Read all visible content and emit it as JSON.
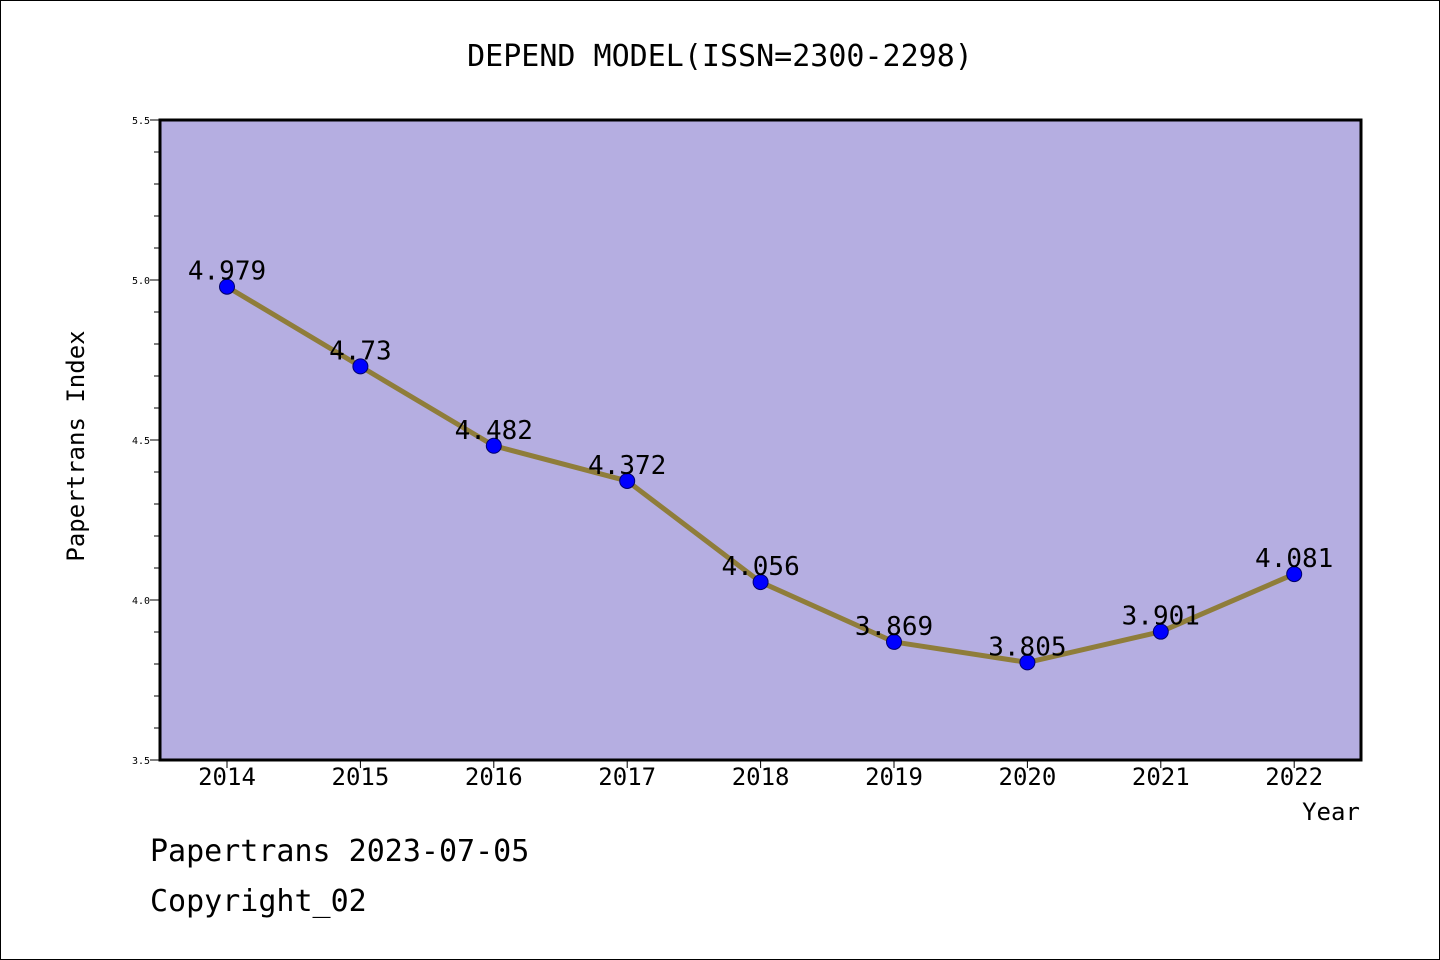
{
  "chart_data": {
    "type": "line",
    "title": "DEPEND MODEL(ISSN=2300-2298)",
    "xlabel": "Year",
    "ylabel": "Papertrans Index",
    "categories": [
      "2014",
      "2015",
      "2016",
      "2017",
      "2018",
      "2019",
      "2020",
      "2021",
      "2022"
    ],
    "series": [
      {
        "values": [
          4.979,
          4.73,
          4.482,
          4.372,
          4.056,
          3.869,
          3.805,
          3.901,
          4.081
        ],
        "labels": [
          "4.979",
          "4.73",
          "4.482",
          "4.372",
          "4.056",
          "3.869",
          "3.805",
          "3.901",
          "4.081"
        ]
      }
    ],
    "ylim": [
      3.5,
      5.5
    ],
    "yticks": [
      "3.5",
      "4.0",
      "4.5",
      "5.0",
      "5.5"
    ],
    "grid": false,
    "colors": {
      "plot_background": "#b5aee1",
      "line": "#8f7d3a",
      "marker": "#0000ff"
    }
  },
  "footer": {
    "date_line": "Papertrans 2023-07-05",
    "copyright": "Copyright_02"
  }
}
